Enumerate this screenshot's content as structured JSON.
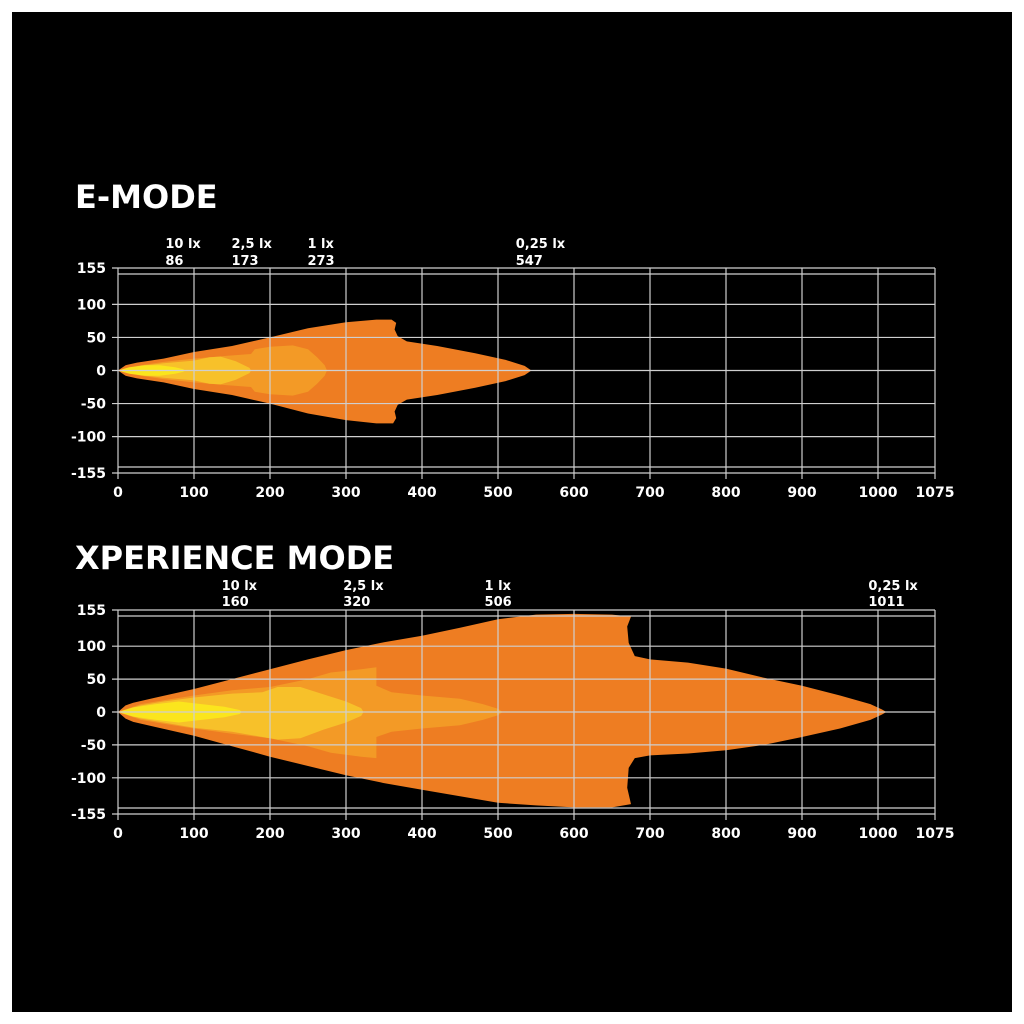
{
  "colors": {
    "background": "#000000",
    "grid": "#cfcfcf",
    "text": "#ffffff",
    "zone_025lx": "#ee7d22",
    "zone_1lx": "#f39a26",
    "zone_25lx": "#f7c12a",
    "zone_10lx": "#fbe51d"
  },
  "chart_data": [
    {
      "type": "area",
      "title": "E-MODE",
      "xlim": [
        0,
        1075
      ],
      "ylim": [
        -155,
        155
      ],
      "x_ticks": [
        "0",
        "100",
        "200",
        "300",
        "400",
        "500",
        "600",
        "700",
        "800",
        "900",
        "1000",
        "1075"
      ],
      "y_ticks": [
        "155",
        "100",
        "50",
        "0",
        "-50",
        "-100",
        "-155"
      ],
      "grid": true,
      "illuminance_labels": [
        {
          "lux": "10 lx",
          "range": "86",
          "x": 86
        },
        {
          "lux": "2,5 lx",
          "range": "173",
          "x": 173
        },
        {
          "lux": "1 lx",
          "range": "273",
          "x": 273
        },
        {
          "lux": "0,25 lx",
          "range": "547",
          "x": 547
        }
      ],
      "zones": [
        {
          "name": "0,25 lx",
          "color_key": "zone_025lx",
          "points": [
            [
              0,
              0
            ],
            [
              10,
              8
            ],
            [
              25,
              12
            ],
            [
              60,
              18
            ],
            [
              100,
              28
            ],
            [
              150,
              37
            ],
            [
              200,
              50
            ],
            [
              250,
              64
            ],
            [
              300,
              73
            ],
            [
              340,
              77
            ],
            [
              360,
              77
            ],
            [
              366,
              72
            ],
            [
              364,
              62
            ],
            [
              368,
              52
            ],
            [
              380,
              44
            ],
            [
              420,
              37
            ],
            [
              470,
              26
            ],
            [
              510,
              16
            ],
            [
              535,
              7
            ],
            [
              544,
              0
            ],
            [
              535,
              -7
            ],
            [
              510,
              -16
            ],
            [
              470,
              -26
            ],
            [
              420,
              -37
            ],
            [
              380,
              -44
            ],
            [
              368,
              -52
            ],
            [
              364,
              -62
            ],
            [
              366,
              -72
            ],
            [
              362,
              -80
            ],
            [
              340,
              -80
            ],
            [
              300,
              -75
            ],
            [
              250,
              -65
            ],
            [
              200,
              -50
            ],
            [
              150,
              -37
            ],
            [
              100,
              -28
            ],
            [
              60,
              -18
            ],
            [
              25,
              -12
            ],
            [
              10,
              -8
            ]
          ]
        },
        {
          "name": "1 lx",
          "color_key": "zone_1lx",
          "points": [
            [
              0,
              0
            ],
            [
              30,
              8
            ],
            [
              60,
              13
            ],
            [
              100,
              18
            ],
            [
              140,
              22
            ],
            [
              175,
              25
            ],
            [
              180,
              32
            ],
            [
              200,
              36
            ],
            [
              230,
              38
            ],
            [
              250,
              32
            ],
            [
              262,
              20
            ],
            [
              272,
              8
            ],
            [
              275,
              0
            ],
            [
              272,
              -8
            ],
            [
              262,
              -20
            ],
            [
              250,
              -32
            ],
            [
              230,
              -38
            ],
            [
              200,
              -36
            ],
            [
              180,
              -32
            ],
            [
              175,
              -25
            ],
            [
              140,
              -22
            ],
            [
              100,
              -18
            ],
            [
              60,
              -13
            ],
            [
              30,
              -8
            ]
          ]
        },
        {
          "name": "2,5 lx",
          "color_key": "zone_25lx",
          "points": [
            [
              0,
              0
            ],
            [
              30,
              7
            ],
            [
              60,
              11
            ],
            [
              100,
              15
            ],
            [
              120,
              20
            ],
            [
              135,
              21
            ],
            [
              155,
              14
            ],
            [
              173,
              4
            ],
            [
              175,
              0
            ],
            [
              173,
              -4
            ],
            [
              155,
              -14
            ],
            [
              135,
              -21
            ],
            [
              120,
              -20
            ],
            [
              100,
              -15
            ],
            [
              60,
              -11
            ],
            [
              30,
              -7
            ]
          ]
        },
        {
          "name": "10 lx",
          "color_key": "zone_10lx",
          "points": [
            [
              0,
              0
            ],
            [
              15,
              5
            ],
            [
              35,
              8
            ],
            [
              55,
              8
            ],
            [
              75,
              5
            ],
            [
              86,
              2
            ],
            [
              88,
              0
            ],
            [
              86,
              -2
            ],
            [
              75,
              -5
            ],
            [
              55,
              -8
            ],
            [
              35,
              -8
            ],
            [
              15,
              -5
            ]
          ]
        }
      ]
    },
    {
      "type": "area",
      "title": "XPERIENCE MODE",
      "xlim": [
        0,
        1075
      ],
      "ylim": [
        -155,
        155
      ],
      "x_ticks": [
        "0",
        "100",
        "200",
        "300",
        "400",
        "500",
        "600",
        "700",
        "800",
        "900",
        "1000",
        "1075"
      ],
      "y_ticks": [
        "155",
        "100",
        "50",
        "0",
        "-50",
        "-100",
        "-155"
      ],
      "grid": true,
      "illuminance_labels": [
        {
          "lux": "10 lx",
          "range": "160",
          "x": 160
        },
        {
          "lux": "2,5 lx",
          "range": "320",
          "x": 320
        },
        {
          "lux": "1 lx",
          "range": "506",
          "x": 506
        },
        {
          "lux": "0,25 lx",
          "range": "1011",
          "x": 1011
        }
      ],
      "zones": [
        {
          "name": "0,25 lx",
          "color_key": "zone_025lx",
          "points": [
            [
              0,
              0
            ],
            [
              10,
              10
            ],
            [
              20,
              14
            ],
            [
              50,
              22
            ],
            [
              100,
              35
            ],
            [
              150,
              50
            ],
            [
              200,
              65
            ],
            [
              250,
              80
            ],
            [
              300,
              94
            ],
            [
              350,
              106
            ],
            [
              400,
              116
            ],
            [
              450,
              128
            ],
            [
              500,
              141
            ],
            [
              550,
              148
            ],
            [
              600,
              149
            ],
            [
              650,
              148
            ],
            [
              675,
              145
            ],
            [
              670,
              130
            ],
            [
              672,
              105
            ],
            [
              680,
              85
            ],
            [
              700,
              80
            ],
            [
              750,
              75
            ],
            [
              800,
              66
            ],
            [
              850,
              52
            ],
            [
              900,
              40
            ],
            [
              950,
              25
            ],
            [
              990,
              12
            ],
            [
              1005,
              4
            ],
            [
              1011,
              0
            ],
            [
              1005,
              -4
            ],
            [
              990,
              -12
            ],
            [
              950,
              -25
            ],
            [
              900,
              -38
            ],
            [
              850,
              -50
            ],
            [
              800,
              -58
            ],
            [
              750,
              -63
            ],
            [
              700,
              -66
            ],
            [
              680,
              -70
            ],
            [
              672,
              -85
            ],
            [
              670,
              -115
            ],
            [
              675,
              -140
            ],
            [
              650,
              -145
            ],
            [
              600,
              -145
            ],
            [
              550,
              -142
            ],
            [
              500,
              -138
            ],
            [
              450,
              -128
            ],
            [
              400,
              -118
            ],
            [
              350,
              -108
            ],
            [
              300,
              -96
            ],
            [
              250,
              -82
            ],
            [
              200,
              -68
            ],
            [
              150,
              -52
            ],
            [
              100,
              -36
            ],
            [
              50,
              -23
            ],
            [
              20,
              -15
            ],
            [
              10,
              -10
            ]
          ]
        },
        {
          "name": "1 lx",
          "color_key": "zone_1lx",
          "points": [
            [
              0,
              0
            ],
            [
              30,
              12
            ],
            [
              60,
              18
            ],
            [
              100,
              25
            ],
            [
              150,
              33
            ],
            [
              200,
              38
            ],
            [
              250,
              50
            ],
            [
              280,
              60
            ],
            [
              320,
              65
            ],
            [
              340,
              68
            ],
            [
              340,
              40
            ],
            [
              360,
              30
            ],
            [
              400,
              25
            ],
            [
              450,
              20
            ],
            [
              480,
              12
            ],
            [
              500,
              5
            ],
            [
              506,
              0
            ],
            [
              500,
              -5
            ],
            [
              480,
              -12
            ],
            [
              450,
              -20
            ],
            [
              400,
              -25
            ],
            [
              360,
              -30
            ],
            [
              340,
              -38
            ],
            [
              340,
              -70
            ],
            [
              320,
              -68
            ],
            [
              280,
              -62
            ],
            [
              250,
              -52
            ],
            [
              200,
              -40
            ],
            [
              150,
              -33
            ],
            [
              100,
              -25
            ],
            [
              60,
              -18
            ],
            [
              30,
              -12
            ]
          ]
        },
        {
          "name": "2,5 lx",
          "color_key": "zone_25lx",
          "points": [
            [
              0,
              0
            ],
            [
              30,
              10
            ],
            [
              60,
              16
            ],
            [
              100,
              22
            ],
            [
              150,
              28
            ],
            [
              190,
              30
            ],
            [
              210,
              38
            ],
            [
              240,
              38
            ],
            [
              270,
              27
            ],
            [
              300,
              16
            ],
            [
              320,
              6
            ],
            [
              323,
              0
            ],
            [
              320,
              -6
            ],
            [
              300,
              -16
            ],
            [
              270,
              -27
            ],
            [
              240,
              -40
            ],
            [
              210,
              -42
            ],
            [
              190,
              -38
            ],
            [
              150,
              -30
            ],
            [
              100,
              -24
            ],
            [
              60,
              -16
            ],
            [
              30,
              -10
            ]
          ]
        },
        {
          "name": "10 lx",
          "color_key": "zone_10lx",
          "points": [
            [
              0,
              0
            ],
            [
              20,
              7
            ],
            [
              50,
              12
            ],
            [
              80,
              16
            ],
            [
              110,
              12
            ],
            [
              140,
              8
            ],
            [
              160,
              3
            ],
            [
              163,
              0
            ],
            [
              160,
              -3
            ],
            [
              140,
              -8
            ],
            [
              110,
              -12
            ],
            [
              80,
              -16
            ],
            [
              50,
              -12
            ],
            [
              20,
              -7
            ]
          ]
        }
      ]
    }
  ]
}
